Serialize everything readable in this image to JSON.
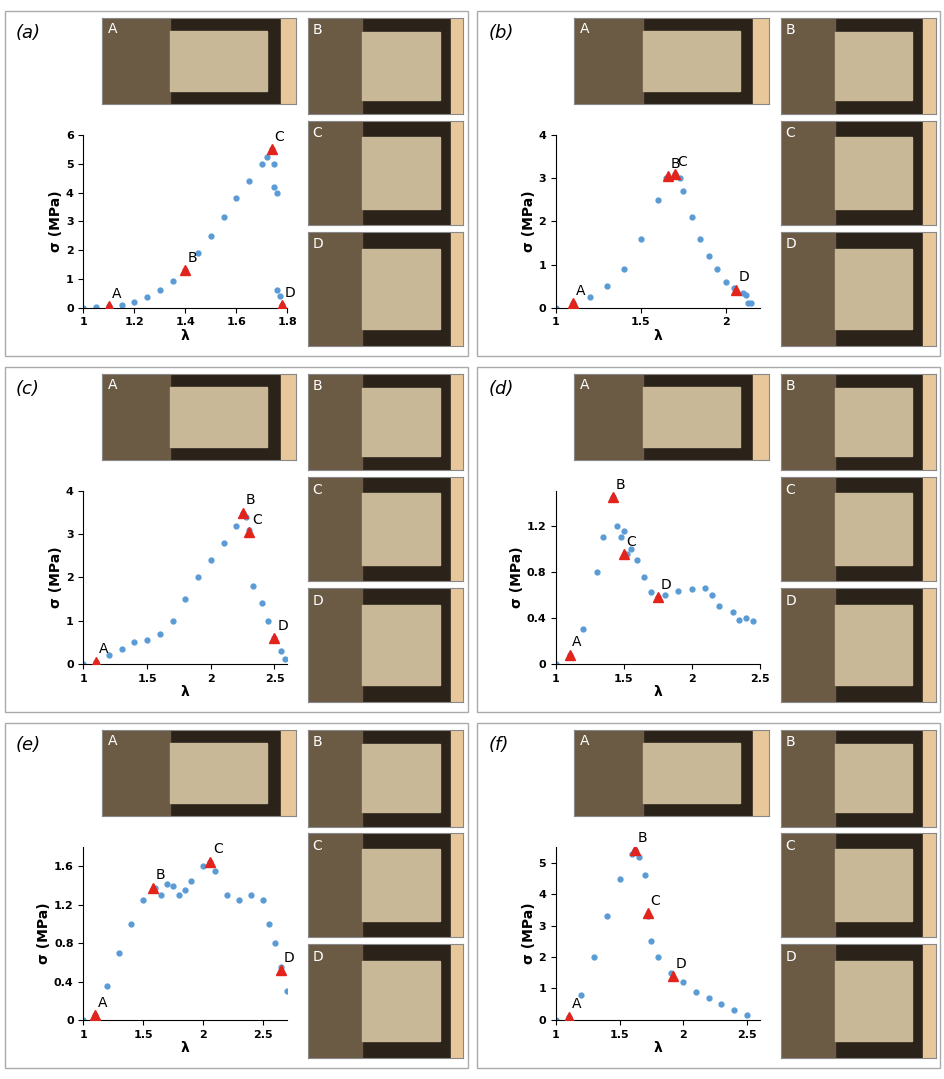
{
  "chart_data": [
    {
      "type": "scatter",
      "title": "(a)",
      "xlabel": "λ",
      "ylabel": "σ (MPa)",
      "color": "#5b9bd5",
      "marker": "circle",
      "x": [
        1.0,
        1.05,
        1.1,
        1.15,
        1.2,
        1.25,
        1.3,
        1.35,
        1.4,
        1.45,
        1.5,
        1.55,
        1.6,
        1.65,
        1.7,
        1.72,
        1.74,
        1.75,
        1.75,
        1.76,
        1.76,
        1.77,
        1.78
      ],
      "values": [
        0.0,
        0.02,
        0.05,
        0.1,
        0.2,
        0.38,
        0.6,
        0.92,
        1.3,
        1.9,
        2.5,
        3.15,
        3.8,
        4.4,
        5.0,
        5.25,
        5.5,
        5.0,
        4.2,
        4.0,
        0.6,
        0.4,
        0.1
      ],
      "xlim": [
        1,
        1.8
      ],
      "ylim": [
        0,
        6
      ],
      "xticks": [
        1,
        1.2,
        1.4,
        1.6,
        1.8
      ],
      "yticks": [
        0,
        1,
        2,
        3,
        4,
        5,
        6
      ],
      "annotations": [
        {
          "label": "A",
          "x": 1.1,
          "y": 0.05
        },
        {
          "label": "B",
          "x": 1.4,
          "y": 1.3
        },
        {
          "label": "C",
          "x": 1.74,
          "y": 5.5
        },
        {
          "label": "D",
          "x": 1.78,
          "y": 0.1
        }
      ],
      "image_labels": [
        "A",
        "B",
        "C",
        "D"
      ]
    },
    {
      "type": "scatter",
      "title": "(b)",
      "xlabel": "λ",
      "ylabel": "σ (MPa)",
      "color": "#5b9bd5",
      "marker": "circle",
      "x": [
        1.0,
        1.1,
        1.2,
        1.3,
        1.4,
        1.5,
        1.6,
        1.65,
        1.7,
        1.73,
        1.75,
        1.8,
        1.85,
        1.9,
        1.95,
        2.0,
        2.05,
        2.1,
        2.12,
        2.13,
        2.15
      ],
      "values": [
        0.0,
        0.1,
        0.25,
        0.5,
        0.9,
        1.6,
        2.5,
        3.0,
        3.1,
        3.0,
        2.7,
        2.1,
        1.6,
        1.2,
        0.9,
        0.6,
        0.45,
        0.35,
        0.3,
        0.1,
        0.1
      ],
      "xlim": [
        1,
        2.2
      ],
      "ylim": [
        0,
        4
      ],
      "xticks": [
        1,
        1.5,
        2
      ],
      "yticks": [
        0,
        1,
        2,
        3,
        4
      ],
      "annotations": [
        {
          "label": "A",
          "x": 1.1,
          "y": 0.1
        },
        {
          "label": "B",
          "x": 1.66,
          "y": 3.05
        },
        {
          "label": "C",
          "x": 1.7,
          "y": 3.1
        },
        {
          "label": "D",
          "x": 2.06,
          "y": 0.42
        }
      ],
      "image_labels": [
        "A",
        "B",
        "C",
        "D"
      ]
    },
    {
      "type": "scatter",
      "title": "(c)",
      "xlabel": "λ",
      "ylabel": "σ (MPa)",
      "color": "#5b9bd5",
      "marker": "circle",
      "x": [
        1.0,
        1.1,
        1.2,
        1.3,
        1.4,
        1.5,
        1.6,
        1.7,
        1.8,
        1.9,
        2.0,
        2.1,
        2.2,
        2.25,
        2.28,
        2.3,
        2.33,
        2.4,
        2.45,
        2.5,
        2.55,
        2.58
      ],
      "values": [
        0.0,
        0.05,
        0.2,
        0.35,
        0.5,
        0.55,
        0.7,
        1.0,
        1.5,
        2.0,
        2.4,
        2.8,
        3.2,
        3.5,
        3.4,
        3.1,
        1.8,
        1.4,
        1.0,
        0.6,
        0.3,
        0.1
      ],
      "xlim": [
        1,
        2.6
      ],
      "ylim": [
        0,
        4
      ],
      "xticks": [
        1,
        1.5,
        2,
        2.5
      ],
      "yticks": [
        0,
        1,
        2,
        3,
        4
      ],
      "annotations": [
        {
          "label": "A",
          "x": 1.1,
          "y": 0.05
        },
        {
          "label": "B",
          "x": 2.25,
          "y": 3.5
        },
        {
          "label": "C",
          "x": 2.3,
          "y": 3.05
        },
        {
          "label": "D",
          "x": 2.5,
          "y": 0.6
        }
      ],
      "image_labels": [
        "A",
        "B",
        "C",
        "D"
      ]
    },
    {
      "type": "scatter",
      "title": "(d)",
      "xlabel": "λ",
      "ylabel": "σ (MPa)",
      "color": "#5b9bd5",
      "marker": "circle",
      "x": [
        1.0,
        1.1,
        1.2,
        1.3,
        1.35,
        1.42,
        1.45,
        1.48,
        1.5,
        1.52,
        1.55,
        1.6,
        1.65,
        1.7,
        1.75,
        1.8,
        1.9,
        2.0,
        2.1,
        2.15,
        2.2,
        2.3,
        2.35,
        2.4,
        2.45
      ],
      "values": [
        0.0,
        0.08,
        0.3,
        0.8,
        1.1,
        1.45,
        1.2,
        1.1,
        1.15,
        0.95,
        1.0,
        0.9,
        0.75,
        0.62,
        0.58,
        0.6,
        0.63,
        0.65,
        0.66,
        0.6,
        0.5,
        0.45,
        0.38,
        0.4,
        0.37
      ],
      "xlim": [
        1,
        2.5
      ],
      "ylim": [
        0,
        1.5
      ],
      "xticks": [
        1,
        1.5,
        2,
        2.5
      ],
      "yticks": [
        0,
        0.4,
        0.8,
        1.2
      ],
      "annotations": [
        {
          "label": "A",
          "x": 1.1,
          "y": 0.08
        },
        {
          "label": "B",
          "x": 1.42,
          "y": 1.45
        },
        {
          "label": "C",
          "x": 1.5,
          "y": 0.95
        },
        {
          "label": "D",
          "x": 1.75,
          "y": 0.58
        }
      ],
      "image_labels": [
        "A",
        "B",
        "C",
        "D"
      ]
    },
    {
      "type": "scatter",
      "title": "(e)",
      "xlabel": "λ",
      "ylabel": "σ (MPa)",
      "color": "#5b9bd5",
      "marker": "circle",
      "x": [
        1.0,
        1.1,
        1.2,
        1.3,
        1.4,
        1.5,
        1.6,
        1.65,
        1.7,
        1.75,
        1.8,
        1.85,
        1.9,
        2.0,
        2.06,
        2.1,
        2.2,
        2.3,
        2.4,
        2.5,
        2.55,
        2.6,
        2.65,
        2.7
      ],
      "values": [
        0.0,
        0.05,
        0.35,
        0.7,
        1.0,
        1.25,
        1.38,
        1.3,
        1.42,
        1.4,
        1.3,
        1.35,
        1.45,
        1.6,
        1.65,
        1.55,
        1.3,
        1.25,
        1.3,
        1.25,
        1.0,
        0.8,
        0.55,
        0.3
      ],
      "xlim": [
        1,
        2.7
      ],
      "ylim": [
        0,
        1.8
      ],
      "xticks": [
        1,
        1.5,
        2,
        2.5
      ],
      "yticks": [
        0,
        0.4,
        0.8,
        1.2,
        1.6
      ],
      "annotations": [
        {
          "label": "A",
          "x": 1.1,
          "y": 0.05
        },
        {
          "label": "B",
          "x": 1.58,
          "y": 1.38
        },
        {
          "label": "C",
          "x": 2.06,
          "y": 1.65
        },
        {
          "label": "D",
          "x": 2.65,
          "y": 0.52
        }
      ],
      "image_labels": [
        "A",
        "B",
        "C",
        "D"
      ]
    },
    {
      "type": "scatter",
      "title": "(f)",
      "xlabel": "λ",
      "ylabel": "σ (MPa)",
      "color": "#5b9bd5",
      "marker": "circle",
      "x": [
        1.0,
        1.1,
        1.2,
        1.3,
        1.4,
        1.5,
        1.6,
        1.62,
        1.65,
        1.7,
        1.72,
        1.75,
        1.8,
        1.9,
        2.0,
        2.1,
        2.2,
        2.3,
        2.4,
        2.5
      ],
      "values": [
        0.0,
        0.1,
        0.8,
        2.0,
        3.3,
        4.5,
        5.3,
        5.4,
        5.2,
        4.6,
        3.3,
        2.5,
        2.0,
        1.5,
        1.2,
        0.9,
        0.7,
        0.5,
        0.3,
        0.15
      ],
      "xlim": [
        1,
        2.6
      ],
      "ylim": [
        0,
        5.5
      ],
      "xticks": [
        1,
        1.5,
        2,
        2.5
      ],
      "yticks": [
        0,
        1,
        2,
        3,
        4,
        5
      ],
      "annotations": [
        {
          "label": "A",
          "x": 1.1,
          "y": 0.1
        },
        {
          "label": "B",
          "x": 1.62,
          "y": 5.4
        },
        {
          "label": "C",
          "x": 1.72,
          "y": 3.4
        },
        {
          "label": "D",
          "x": 1.92,
          "y": 1.4
        }
      ],
      "image_labels": [
        "A",
        "B",
        "C",
        "D"
      ]
    }
  ]
}
